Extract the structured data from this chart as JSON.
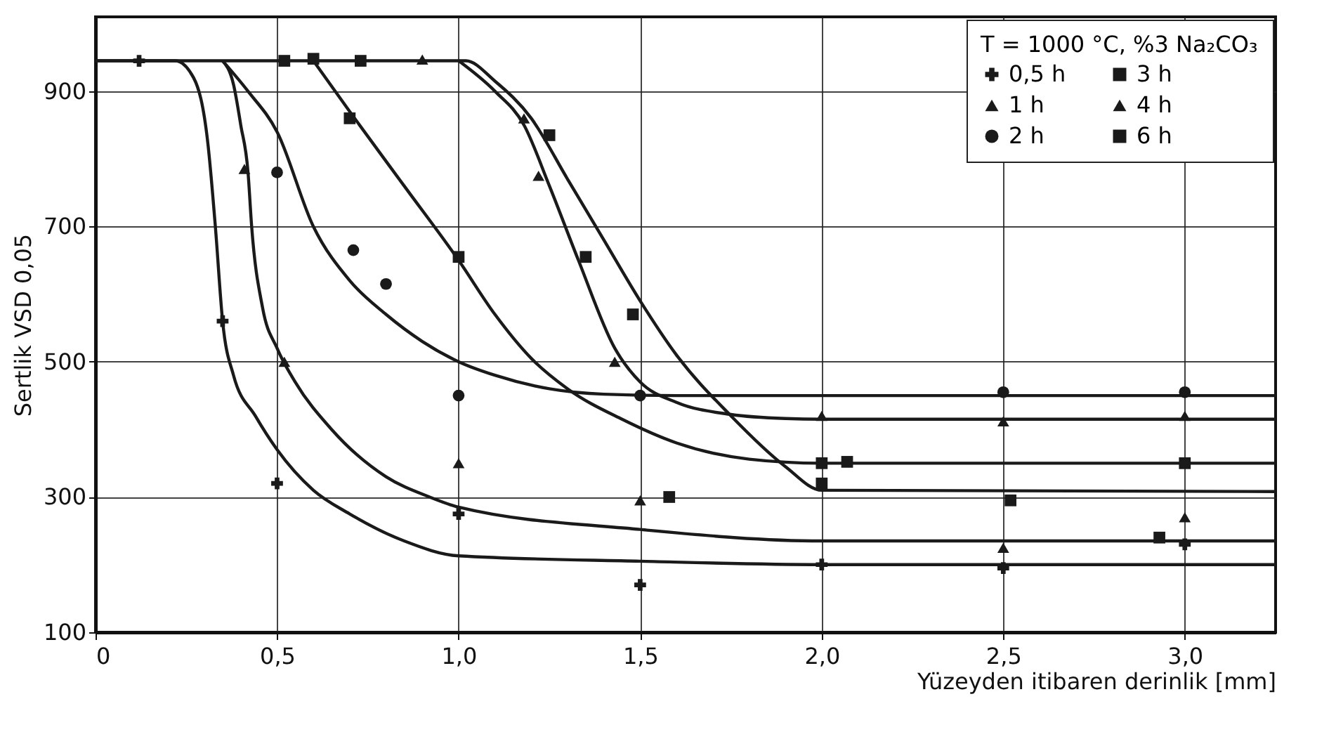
{
  "chart_data": {
    "type": "scatter",
    "xlabel": "Yüzeyden itibaren derinlik [mm]",
    "ylabel": "Sertlik VSD 0,05",
    "legend_title": "T = 1000 °C, %3 Na₂CO₃",
    "legend": "top right",
    "grid": true,
    "xlim": [
      0,
      3.25
    ],
    "ylim": [
      100,
      1010
    ],
    "xticks": [
      0,
      {
        "value": 0.5,
        "label": "0,5"
      },
      {
        "value": 1,
        "label": "1,0"
      },
      {
        "value": 1.5,
        "label": "1,5"
      },
      {
        "value": 2,
        "label": "2,0"
      },
      {
        "value": 2.5,
        "label": "2,5"
      },
      {
        "value": 3,
        "label": "3,0"
      }
    ],
    "yticks": [
      100,
      300,
      500,
      700,
      900
    ],
    "series": [
      {
        "name": "0,5 h",
        "marker": "cross",
        "color": "#1a1a1a",
        "x": [
          0.12,
          0.35,
          0.5,
          1.0,
          1.5,
          2.0,
          2.5,
          3.0
        ],
        "values": [
          945,
          560,
          320,
          275,
          170,
          200,
          195,
          230
        ]
      },
      {
        "name": "1 h",
        "marker": "triangle",
        "color": "#1a1a1a",
        "x": [
          0.41,
          0.52,
          1.0,
          1.5,
          2.5,
          3.0
        ],
        "values": [
          785,
          500,
          350,
          295,
          225,
          270
        ]
      },
      {
        "name": "2 h",
        "marker": "circle",
        "color": "#1a1a1a",
        "x": [
          0.5,
          0.71,
          0.8,
          1.0,
          1.5,
          2.5,
          3.0
        ],
        "values": [
          780,
          665,
          615,
          450,
          450,
          455,
          455
        ]
      },
      {
        "name": "3 h",
        "marker": "square",
        "color": "#1a1a1a",
        "x": [
          0.52,
          0.6,
          0.7,
          1.0,
          1.58,
          2.0,
          2.07,
          3.0
        ],
        "values": [
          945,
          948,
          860,
          655,
          300,
          350,
          352,
          350
        ]
      },
      {
        "name": "4 h",
        "marker": "triangle",
        "color": "#1a1a1a",
        "x": [
          0.9,
          1.18,
          1.22,
          1.43,
          2.0,
          2.5,
          3.0
        ],
        "values": [
          947,
          860,
          775,
          500,
          420,
          412,
          420
        ]
      },
      {
        "name": "6 h",
        "marker": "square",
        "color": "#1a1a1a",
        "x": [
          0.73,
          1.25,
          1.35,
          1.48,
          2.0,
          2.52,
          2.93
        ],
        "values": [
          945,
          835,
          655,
          570,
          320,
          295,
          240
        ]
      },
      {
        "type": "line",
        "color": "#1a1a1a",
        "x": [
          0,
          0.22,
          0.27,
          0.31,
          0.33,
          0.35,
          0.38,
          0.44,
          0.5,
          0.6,
          0.7,
          0.85,
          1.0,
          1.5,
          2.0,
          3.25
        ],
        "values": [
          945,
          945,
          920,
          820,
          700,
          560,
          480,
          420,
          370,
          310,
          275,
          235,
          213,
          205,
          200,
          200
        ]
      },
      {
        "type": "line",
        "color": "#1a1a1a",
        "x": [
          0.35,
          0.38,
          0.4,
          0.42,
          0.43,
          0.46,
          0.5,
          0.55,
          0.65,
          0.8,
          0.92,
          1.0,
          1.5,
          2.0,
          3.25
        ],
        "values": [
          945,
          910,
          850,
          780,
          700,
          580,
          520,
          470,
          400,
          330,
          300,
          285,
          252,
          235,
          235
        ]
      },
      {
        "type": "line",
        "color": "#1a1a1a",
        "x": [
          0.35,
          0.42,
          0.5,
          0.6,
          0.7,
          0.8,
          0.9,
          1.0,
          1.1,
          1.25,
          1.4,
          1.6,
          2.0,
          3.25
        ],
        "values": [
          945,
          900,
          840,
          700,
          620,
          570,
          530,
          500,
          480,
          460,
          452,
          450,
          450,
          450
        ]
      },
      {
        "type": "line",
        "color": "#1a1a1a",
        "x": [
          0.6,
          0.7,
          0.85,
          1.0,
          1.1,
          1.2,
          1.3,
          1.45,
          1.6,
          1.8,
          2.0,
          3.25
        ],
        "values": [
          945,
          870,
          760,
          650,
          570,
          505,
          460,
          415,
          380,
          356,
          350,
          350
        ]
      },
      {
        "type": "line",
        "color": "#1a1a1a",
        "x": [
          1.0,
          1.1,
          1.18,
          1.25,
          1.33,
          1.43,
          1.5,
          1.6,
          1.75,
          1.9,
          2.0,
          3.25
        ],
        "values": [
          945,
          900,
          850,
          760,
          650,
          520,
          470,
          440,
          422,
          416,
          415,
          415
        ]
      },
      {
        "type": "line",
        "color": "#1a1a1a",
        "x": [
          0,
          1.02,
          1.1,
          1.2,
          1.3,
          1.4,
          1.5,
          1.6,
          1.75,
          1.9,
          2.0,
          3.25
        ],
        "values": [
          945,
          945,
          915,
          860,
          770,
          680,
          590,
          510,
          420,
          345,
          310,
          308
        ]
      }
    ]
  }
}
